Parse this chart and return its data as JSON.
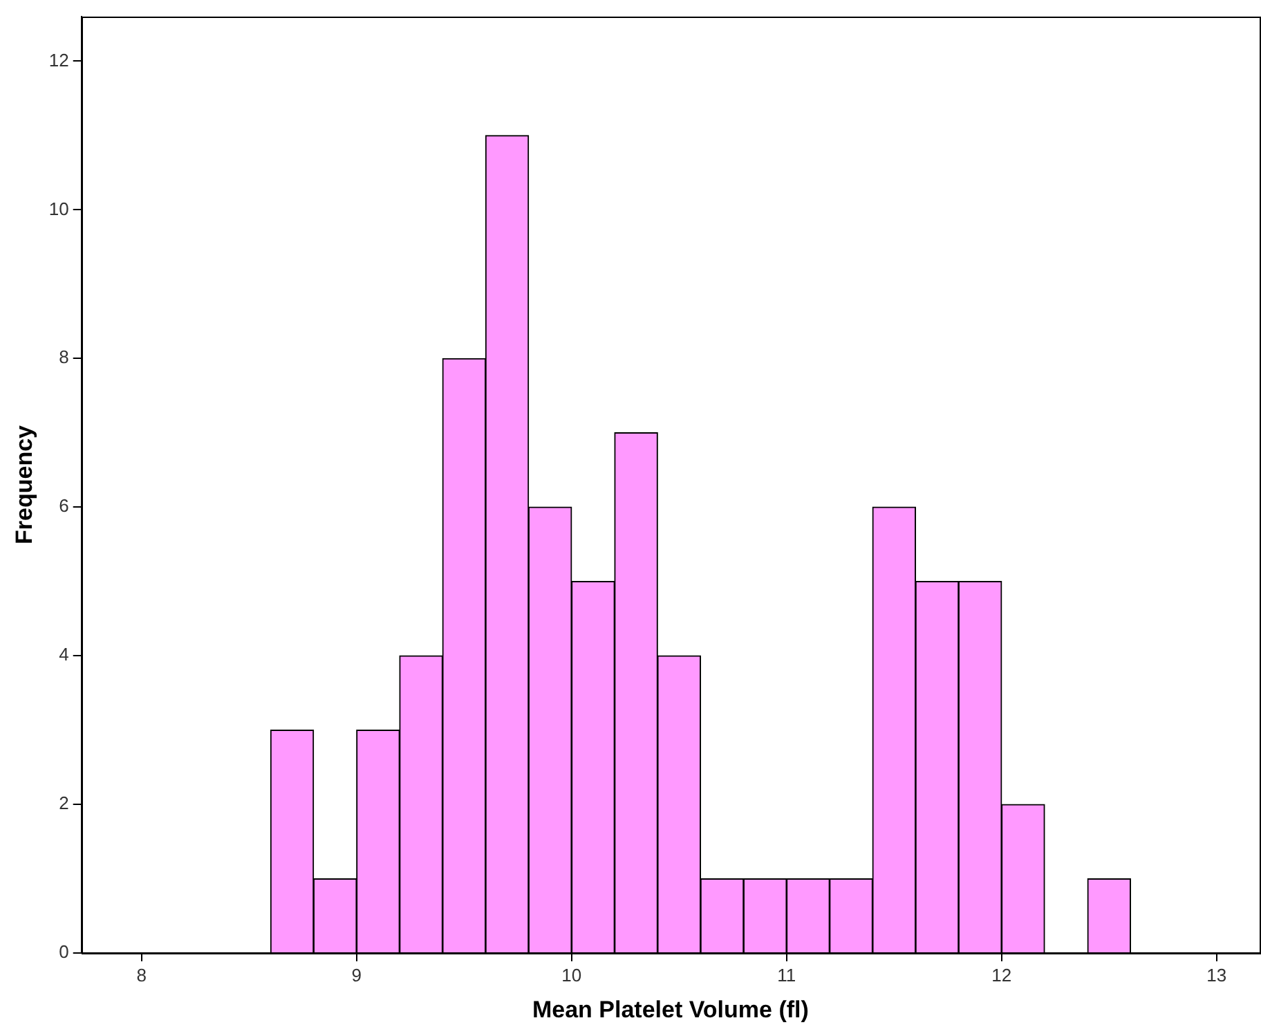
{
  "chart_data": {
    "type": "histogram",
    "xlabel": "Mean Platelet Volume (fl)",
    "ylabel": "Frequency",
    "bins": [
      8.6,
      8.8,
      9.0,
      9.2,
      9.4,
      9.6,
      9.8,
      10.0,
      10.2,
      10.4,
      10.6,
      10.8,
      11.0,
      11.2,
      11.4,
      11.6,
      11.8,
      12.0,
      12.2,
      12.4,
      12.6
    ],
    "values": [
      3,
      1,
      3,
      4,
      8,
      11,
      6,
      5,
      7,
      4,
      1,
      1,
      1,
      1,
      6,
      5,
      5,
      2,
      0,
      1
    ],
    "color": "#ff99ff",
    "xlim": [
      7.72,
      13.2
    ],
    "xticks": [
      8,
      9,
      10,
      11,
      12,
      13
    ],
    "ylim": [
      0,
      12.6
    ],
    "yticks": [
      0,
      2,
      4,
      6,
      8,
      10,
      12
    ],
    "grid": false,
    "legend": false
  }
}
